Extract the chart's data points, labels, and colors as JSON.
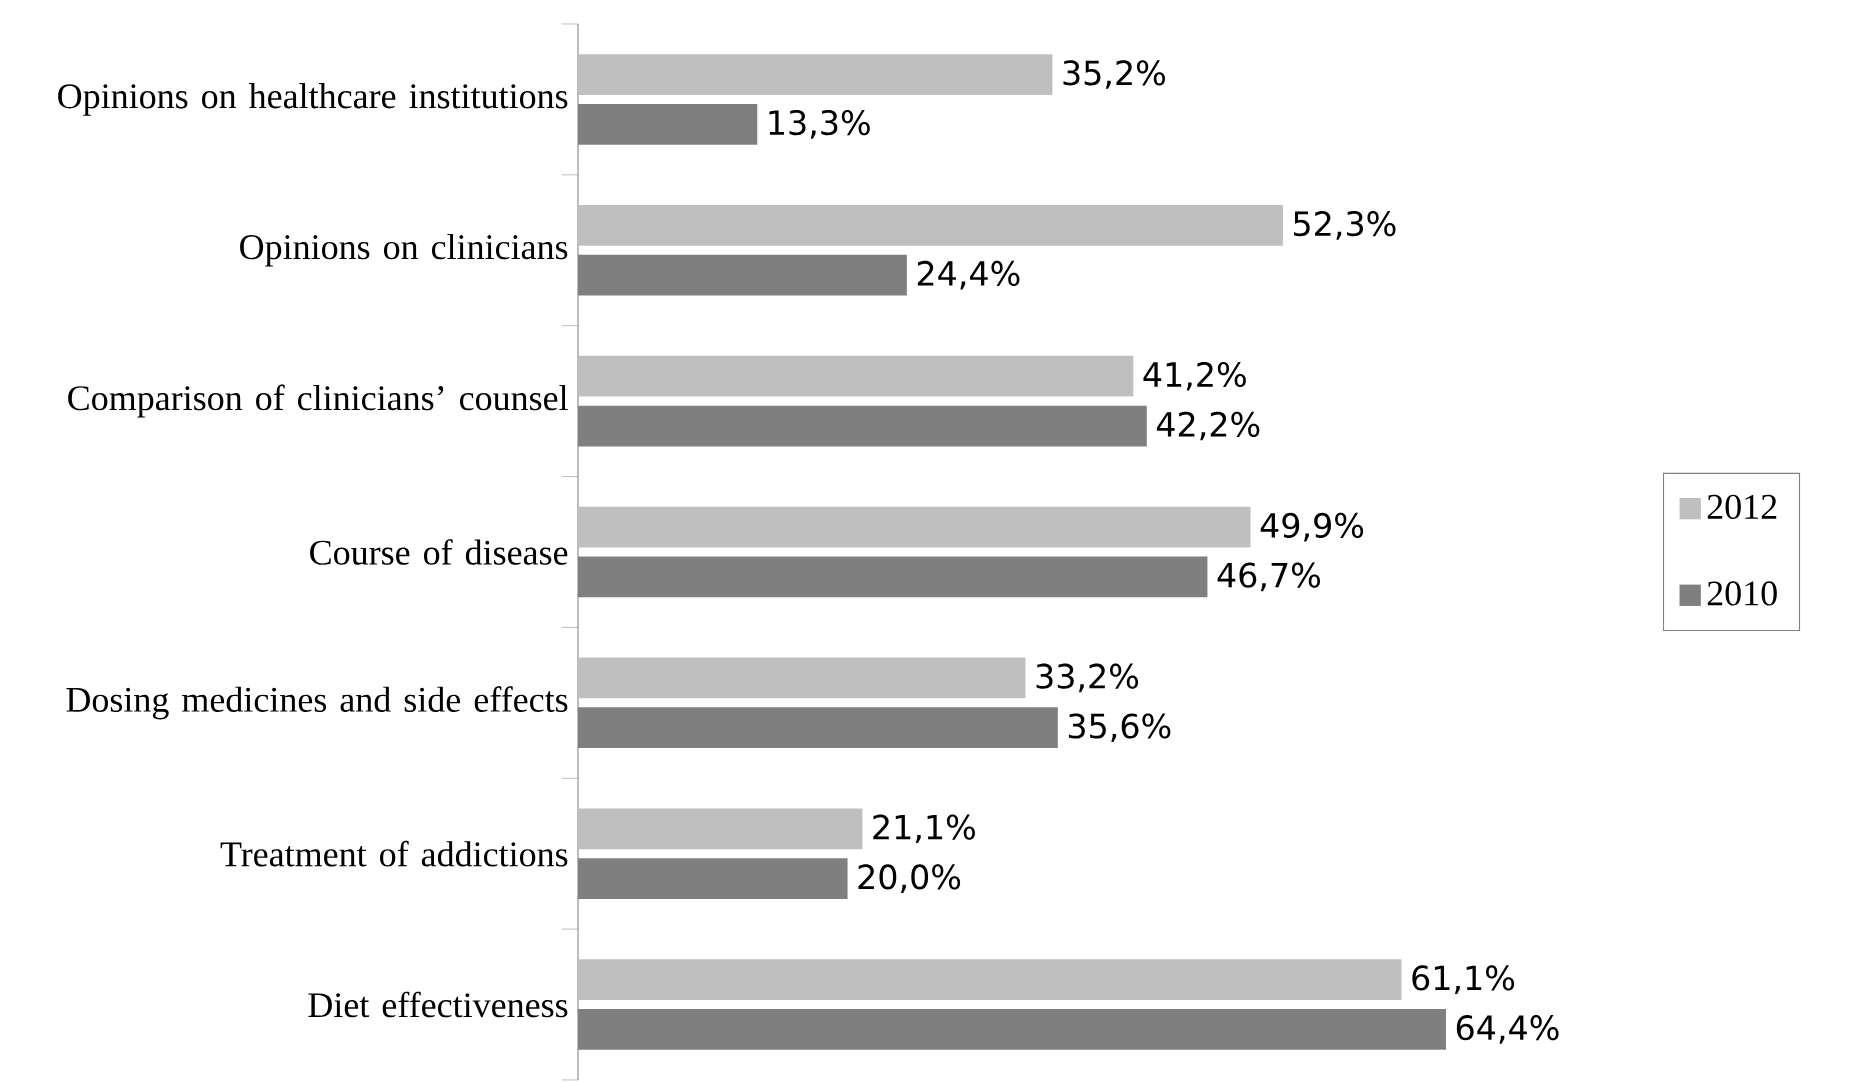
{
  "chart_data": {
    "type": "bar",
    "orientation": "horizontal",
    "legend": "right",
    "categories": [
      "Opinions on healthcare institutions",
      "Opinions on clinicians",
      "Comparison of clinicians’ counsel",
      "Course of disease",
      "Dosing medicines and side effects",
      "Treatment of addictions",
      "Diet effectiveness"
    ],
    "series": [
      {
        "name": "2012",
        "color": "#bfbfbf",
        "values": [
          35.2,
          52.3,
          41.2,
          49.9,
          33.2,
          21.1,
          61.1
        ],
        "value_labels": [
          "35,2%",
          "52,3%",
          "41,2%",
          "49,9%",
          "33,2%",
          "21,1%",
          "61,1%"
        ]
      },
      {
        "name": "2010",
        "color": "#7f7f7f",
        "values": [
          13.3,
          24.4,
          42.2,
          46.7,
          35.6,
          20.0,
          64.4
        ],
        "value_labels": [
          "13,3%",
          "24,4%",
          "42,2%",
          "46,7%",
          "35,6%",
          "20,0%",
          "64,4%"
        ]
      }
    ]
  }
}
